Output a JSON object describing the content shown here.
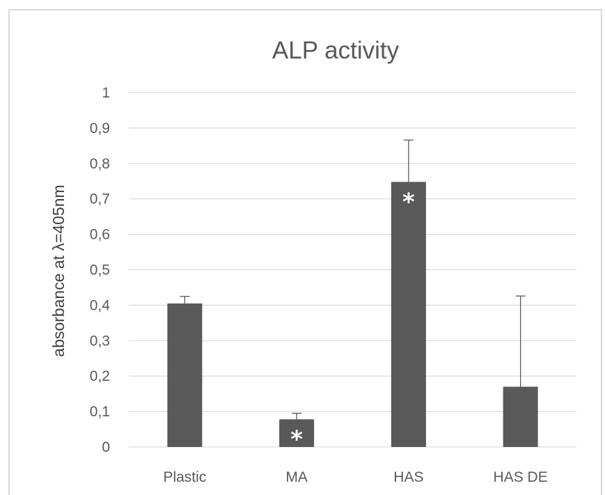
{
  "chart_data": {
    "type": "bar",
    "title": "ALP activity",
    "ylabel": "absorbance at λ=405nm",
    "xlabel": "",
    "ylim": [
      0,
      1
    ],
    "yticks": [
      "0",
      "0,1",
      "0,2",
      "0,3",
      "0,4",
      "0,5",
      "0,6",
      "0,7",
      "0,8",
      "0,9",
      "1"
    ],
    "categories": [
      "Plastic",
      "MA",
      "HAS",
      "HAS DE"
    ],
    "values": [
      0.405,
      0.078,
      0.748,
      0.17
    ],
    "error_upper": [
      0.02,
      0.017,
      0.118,
      0.256
    ],
    "significance": [
      "",
      "*",
      "*",
      ""
    ],
    "bar_color": "#595959",
    "grid": true,
    "legend": "none"
  }
}
